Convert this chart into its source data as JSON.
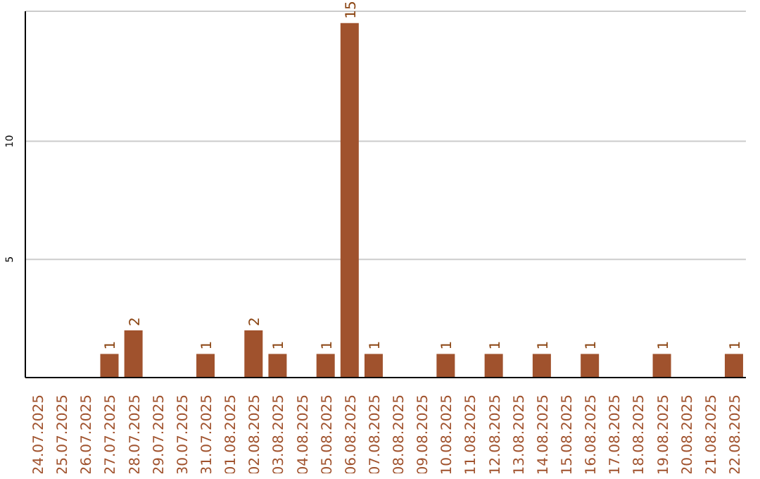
{
  "chart_data": {
    "type": "bar",
    "categories": [
      "24.07.2025",
      "25.07.2025",
      "26.07.2025",
      "27.07.2025",
      "28.07.2025",
      "29.07.2025",
      "30.07.2025",
      "31.07.2025",
      "01.08.2025",
      "02.08.2025",
      "03.08.2025",
      "04.08.2025",
      "05.08.2025",
      "06.08.2025",
      "07.08.2025",
      "08.08.2025",
      "09.08.2025",
      "10.08.2025",
      "11.08.2025",
      "12.08.2025",
      "13.08.2025",
      "14.08.2025",
      "15.08.2025",
      "16.08.2025",
      "17.08.2025",
      "18.08.2025",
      "19.08.2025",
      "20.08.2025",
      "21.08.2025",
      "22.08.2025"
    ],
    "values": [
      null,
      null,
      null,
      1,
      2,
      null,
      null,
      1,
      null,
      2,
      1,
      null,
      1,
      15,
      1,
      null,
      null,
      1,
      null,
      1,
      null,
      1,
      null,
      1,
      null,
      null,
      1,
      null,
      null,
      1
    ],
    "color": "#a0522d",
    "ylim": [
      0,
      15.5
    ],
    "yticks": [
      5,
      10
    ],
    "grid": "y",
    "data_labels": true
  }
}
